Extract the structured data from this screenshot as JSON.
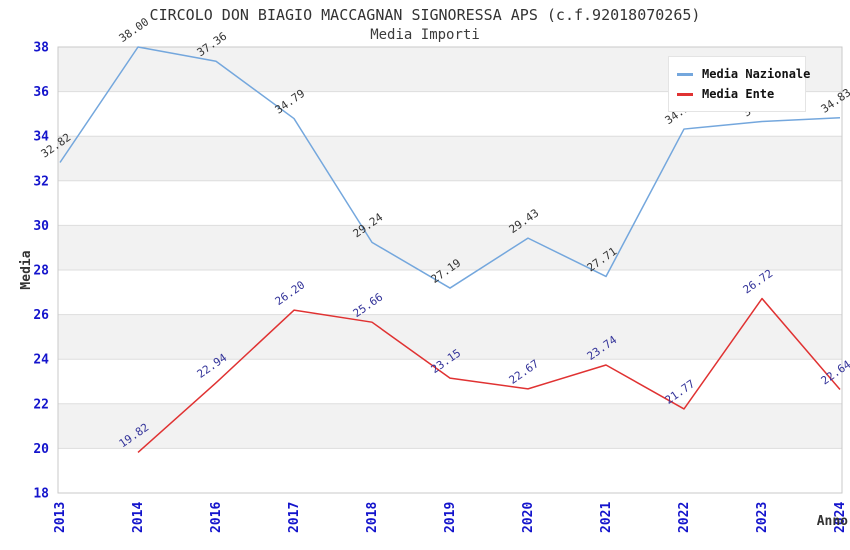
{
  "chart_data": {
    "type": "line",
    "title": "CIRCOLO DON BIAGIO MACCAGNAN SIGNORESSA APS (c.f.92018070265)",
    "subtitle": "Media Importi",
    "xlabel": "Anno",
    "ylabel": "Media",
    "categories": [
      "2013",
      "2014",
      "2016",
      "2017",
      "2018",
      "2019",
      "2020",
      "2021",
      "2022",
      "2023",
      "2024"
    ],
    "series": [
      {
        "name": "Media Nazionale",
        "color": "#74a7dd",
        "label_color": "#333333",
        "values": [
          32.82,
          38.0,
          37.36,
          34.79,
          29.24,
          27.19,
          29.43,
          27.71,
          34.32,
          34.66,
          34.83
        ]
      },
      {
        "name": "Media Ente",
        "color": "#e03232",
        "label_color": "#333399",
        "values": [
          null,
          19.82,
          22.94,
          26.2,
          25.66,
          23.15,
          22.67,
          23.74,
          21.77,
          26.72,
          22.64
        ]
      }
    ],
    "ylim": [
      18,
      38
    ],
    "yticks": [
      18,
      20,
      22,
      24,
      26,
      28,
      30,
      32,
      34,
      36,
      38
    ],
    "grid": true,
    "legend_position": "top-right",
    "colors": {
      "tick_label": "#1414cc",
      "band_fill": "#f2f2f2",
      "gridline": "#dddddd",
      "plot_border": "#c9c9c9",
      "title_text": "#333333"
    }
  }
}
